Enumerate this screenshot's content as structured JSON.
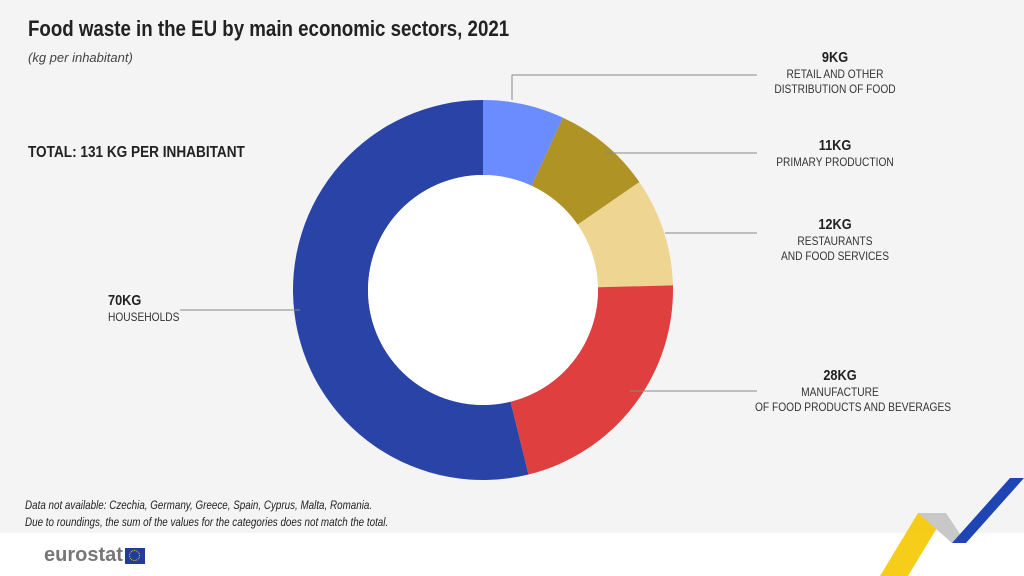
{
  "title": "Food waste in the EU by main economic sectors, 2021",
  "subtitle": "(kg per inhabitant)",
  "total": "TOTAL: 131 KG PER INHABITANT",
  "chart_data": {
    "type": "pie",
    "donut": true,
    "title": "Food waste in the EU by main economic sectors, 2021",
    "unit": "kg per inhabitant",
    "slices": [
      {
        "label": "RETAIL AND OTHER DISTRIBUTION OF FOOD",
        "value": 9,
        "value_label": "9KG",
        "color": "#6b8cff"
      },
      {
        "label": "PRIMARY PRODUCTION",
        "value": 11,
        "value_label": "11KG",
        "color": "#b09325"
      },
      {
        "label": "RESTAURANTS AND FOOD SERVICES",
        "value": 12,
        "value_label": "12KG",
        "color": "#efd592"
      },
      {
        "label": "MANUFACTURE OF FOOD PRODUCTS AND BEVERAGES",
        "value": 28,
        "value_label": "28KG",
        "color": "#e03f3f"
      },
      {
        "label": "HOUSEHOLDS",
        "value": 70,
        "value_label": "70KG",
        "color": "#2a43a6"
      }
    ]
  },
  "labels": {
    "retail": {
      "value": "9KG",
      "l1": "RETAIL AND OTHER",
      "l2": "DISTRIBUTION OF FOOD"
    },
    "primary": {
      "value": "11KG",
      "l1": "PRIMARY PRODUCTION"
    },
    "restaurants": {
      "value": "12KG",
      "l1": "RESTAURANTS",
      "l2": "AND FOOD SERVICES"
    },
    "manufacture": {
      "value": "28KG",
      "l1": "MANUFACTURE",
      "l2": "OF FOOD PRODUCTS AND BEVERAGES"
    },
    "households": {
      "value": "70KG",
      "l1": "HOUSEHOLDS"
    }
  },
  "notes": [
    "Data not available:  Czechia, Germany, Greece, Spain, Cyprus, Malta, Romania.",
    "Due to roundings, the sum of the values for the categories does not match the total."
  ],
  "logo": "eurostat"
}
